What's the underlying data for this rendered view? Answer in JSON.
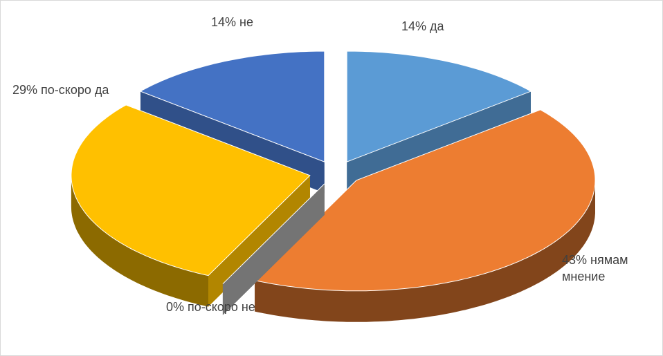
{
  "chart_data": {
    "type": "pie3d",
    "categories": [
      "да",
      "нямам мнение",
      "по-скоро не",
      "по-скоро да",
      "не"
    ],
    "values": [
      14,
      43,
      0,
      29,
      14
    ],
    "value_labels": [
      "14%",
      "43%",
      "0%",
      "29%",
      "14%"
    ],
    "colors": [
      "#5b9bd5",
      "#ed7d31",
      "#a5a5a5",
      "#ffc000",
      "#4472c4"
    ],
    "exploded": true
  }
}
